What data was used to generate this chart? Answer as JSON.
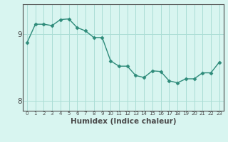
{
  "x": [
    0,
    1,
    2,
    3,
    4,
    5,
    6,
    7,
    8,
    9,
    10,
    11,
    12,
    13,
    14,
    15,
    16,
    17,
    18,
    19,
    20,
    21,
    22,
    23
  ],
  "y": [
    8.87,
    9.15,
    9.15,
    9.13,
    9.22,
    9.23,
    9.1,
    9.05,
    8.95,
    8.95,
    8.6,
    8.52,
    8.52,
    8.38,
    8.35,
    8.45,
    8.44,
    8.3,
    8.27,
    8.33,
    8.33,
    8.42,
    8.42,
    8.58
  ],
  "line_color": "#2e8b7a",
  "marker": "D",
  "marker_size": 2.5,
  "bg_color": "#d8f5f0",
  "grid_color": "#aaddd5",
  "axis_color": "#4a4a4a",
  "xlabel": "Humidex (Indice chaleur)",
  "xlabel_fontsize": 7.5,
  "yticks": [
    8,
    9
  ],
  "ylim": [
    7.85,
    9.45
  ],
  "xlim": [
    -0.5,
    23.5
  ],
  "xtick_fontsize": 5.0,
  "ytick_fontsize": 7.5
}
